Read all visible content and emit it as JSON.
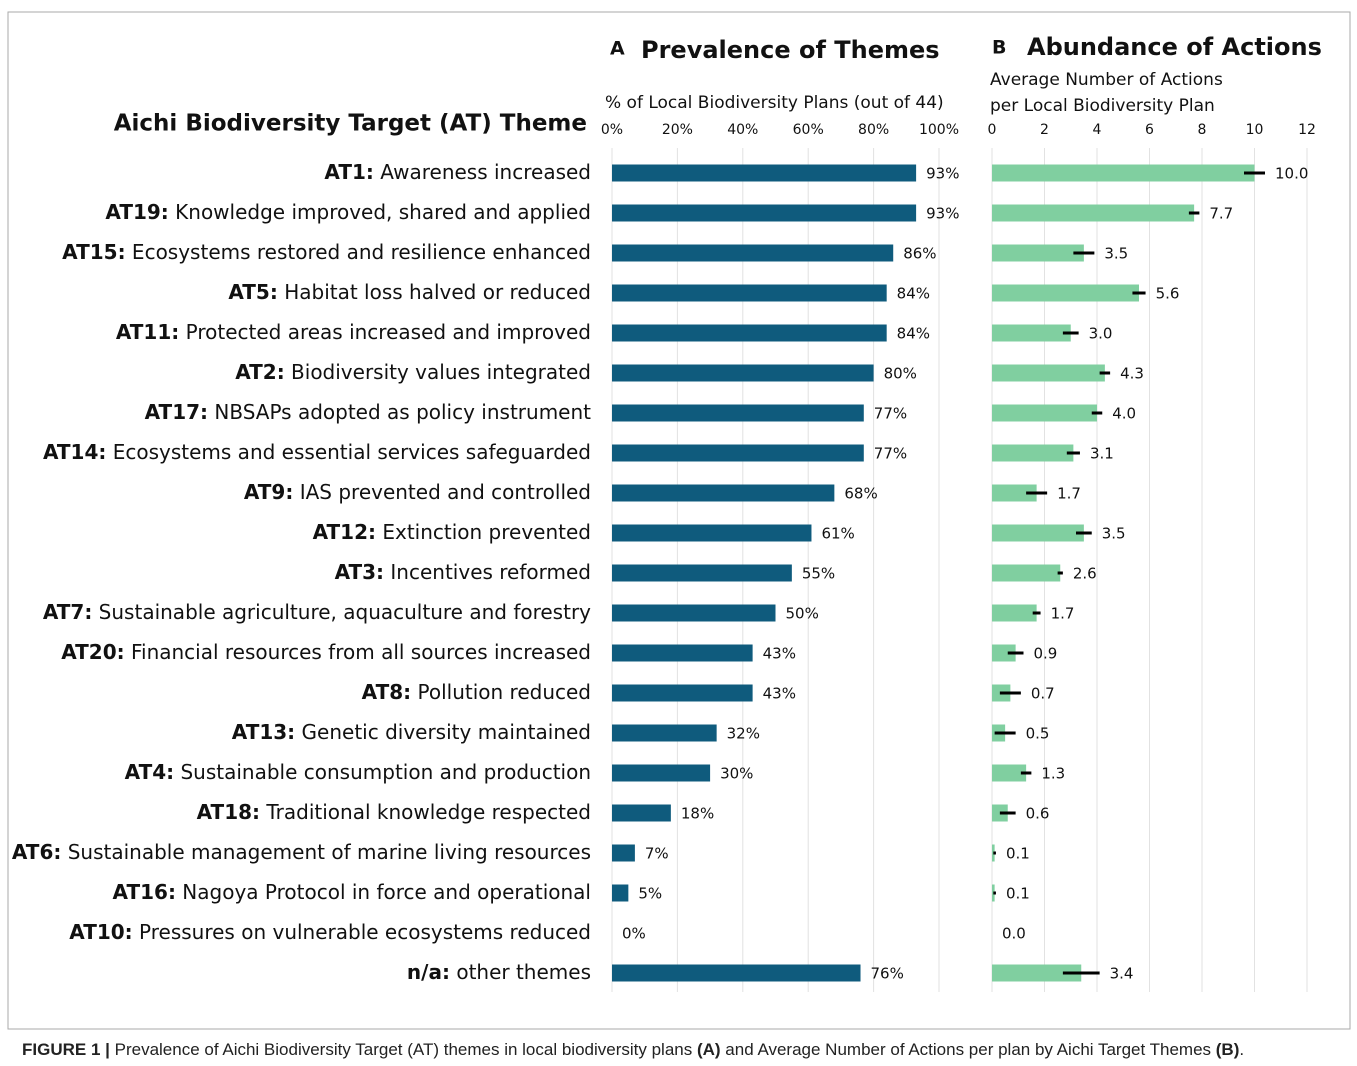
{
  "caption": [
    "FIGURE 1 |",
    " Prevalence of Aichi Biodiversity Target (AT) themes in local biodiversity plans ",
    "(A)",
    " and Average Number of Actions per plan by Aichi Target Themes ",
    "(B)",
    "."
  ],
  "chart_data": [
    {
      "type": "bar",
      "orientation": "horizontal",
      "panel": "A",
      "title": "Prevalence of Themes",
      "x_axis_label": "% of Local Biodiversity Plans (out of 44)",
      "y_axis_label": "Aichi Biodiversity Target (AT) Theme",
      "categories": [
        "AT1: Awareness increased",
        "AT19: Knowledge improved, shared and applied",
        "AT15: Ecosystems restored and resilience enhanced",
        "AT5: Habitat loss halved or reduced",
        "AT11: Protected areas increased and improved",
        "AT2: Biodiversity values integrated",
        "AT17: NBSAPs adopted as policy instrument",
        "AT14: Ecosystems and essential services safeguarded",
        "AT9: IAS prevented and controlled",
        "AT12: Extinction prevented",
        "AT3: Incentives reformed",
        "AT7: Sustainable agriculture, aquaculture and forestry",
        "AT20: Financial resources from all sources increased",
        "AT8: Pollution reduced",
        "AT13: Genetic diversity maintained",
        "AT4: Sustainable consumption and production",
        "AT18: Traditional knowledge respected",
        "AT6: Sustainable management of marine living resources",
        "AT16: Nagoya Protocol in force and operational",
        "AT10: Pressures on vulnerable ecosystems reduced",
        "n/a: other themes"
      ],
      "values": [
        93,
        93,
        86,
        84,
        84,
        80,
        77,
        77,
        68,
        61,
        55,
        50,
        43,
        43,
        32,
        30,
        18,
        7,
        5,
        0,
        76
      ],
      "value_labels": [
        "93%",
        "93%",
        "86%",
        "84%",
        "84%",
        "80%",
        "77%",
        "77%",
        "68%",
        "61%",
        "55%",
        "50%",
        "43%",
        "43%",
        "32%",
        "30%",
        "18%",
        "7%",
        "5%",
        "0%",
        "76%"
      ],
      "color": "#0f5b7d",
      "xlim": [
        0,
        100
      ],
      "xticks": [
        {
          "value": 0,
          "label": "0%"
        },
        {
          "value": 20,
          "label": "20%"
        },
        {
          "value": 40,
          "label": "40%"
        },
        {
          "value": 60,
          "label": "60%"
        },
        {
          "value": 80,
          "label": "80%"
        },
        {
          "value": 100,
          "label": "100%"
        }
      ],
      "grid": true
    },
    {
      "type": "bar",
      "orientation": "horizontal",
      "panel": "B",
      "title": "Abundance of Actions",
      "x_axis_label": [
        "Average Number of Actions",
        "per Local Biodiversity Plan"
      ],
      "values": [
        10.0,
        7.7,
        3.5,
        5.6,
        3.0,
        4.3,
        4.0,
        3.1,
        1.7,
        3.5,
        2.6,
        1.7,
        0.9,
        0.7,
        0.5,
        1.3,
        0.6,
        0.1,
        0.1,
        0.0,
        3.4
      ],
      "value_labels": [
        "10.0",
        "7.7",
        "3.5",
        "5.6",
        "3.0",
        "4.3",
        "4.0",
        "3.1",
        "1.7",
        "3.5",
        "2.6",
        "1.7",
        "0.9",
        "0.7",
        "0.5",
        "1.3",
        "0.6",
        "0.1",
        "0.1",
        "0.0",
        "3.4"
      ],
      "errors": [
        0.4,
        0.2,
        0.4,
        0.25,
        0.3,
        0.2,
        0.2,
        0.25,
        0.4,
        0.3,
        0.1,
        0.15,
        0.3,
        0.4,
        0.4,
        0.2,
        0.3,
        0.05,
        0.05,
        0,
        0.7
      ],
      "color": "#80cfa0",
      "xlim": [
        0,
        12
      ],
      "xticks": [
        0,
        2,
        4,
        6,
        8,
        10,
        12
      ],
      "grid": true
    }
  ]
}
